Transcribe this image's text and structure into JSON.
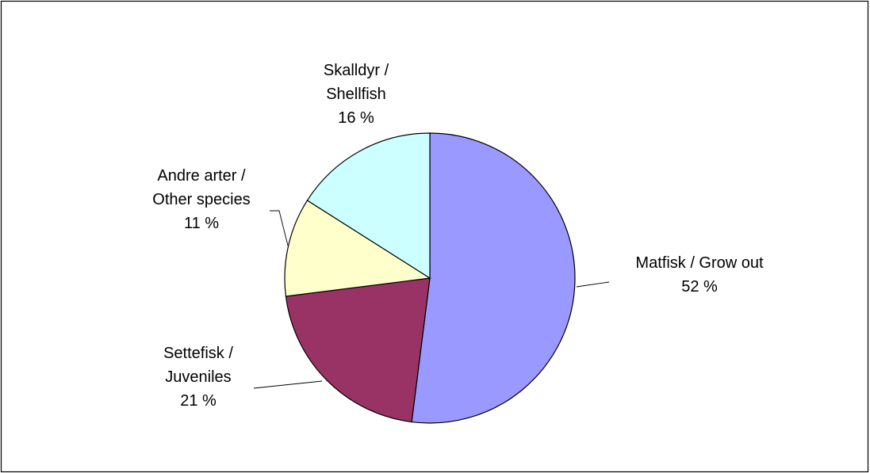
{
  "chart_data": {
    "type": "pie",
    "start_angle_deg": 0,
    "direction": "clockwise",
    "slices": [
      {
        "name": "Matfisk / Grow out",
        "label_lines": [
          "Matfisk / Grow out"
        ],
        "value": 52,
        "value_label": "52 %",
        "color": "#9999ff",
        "label_side": "right"
      },
      {
        "name": "Settefisk / Juveniles",
        "label_lines": [
          "Settefisk /",
          "Juveniles"
        ],
        "value": 21,
        "value_label": "21 %",
        "color": "#993366",
        "label_side": "left"
      },
      {
        "name": "Andre arter / Other species",
        "label_lines": [
          "Andre arter /",
          "Other species"
        ],
        "value": 11,
        "value_label": "11 %",
        "color": "#ffffcc",
        "label_side": "left"
      },
      {
        "name": "Skalldyr / Shellfish",
        "label_lines": [
          "Skalldyr /",
          "Shellfish"
        ],
        "value": 16,
        "value_label": "16 %",
        "color": "#ccffff",
        "label_side": "top"
      }
    ]
  }
}
